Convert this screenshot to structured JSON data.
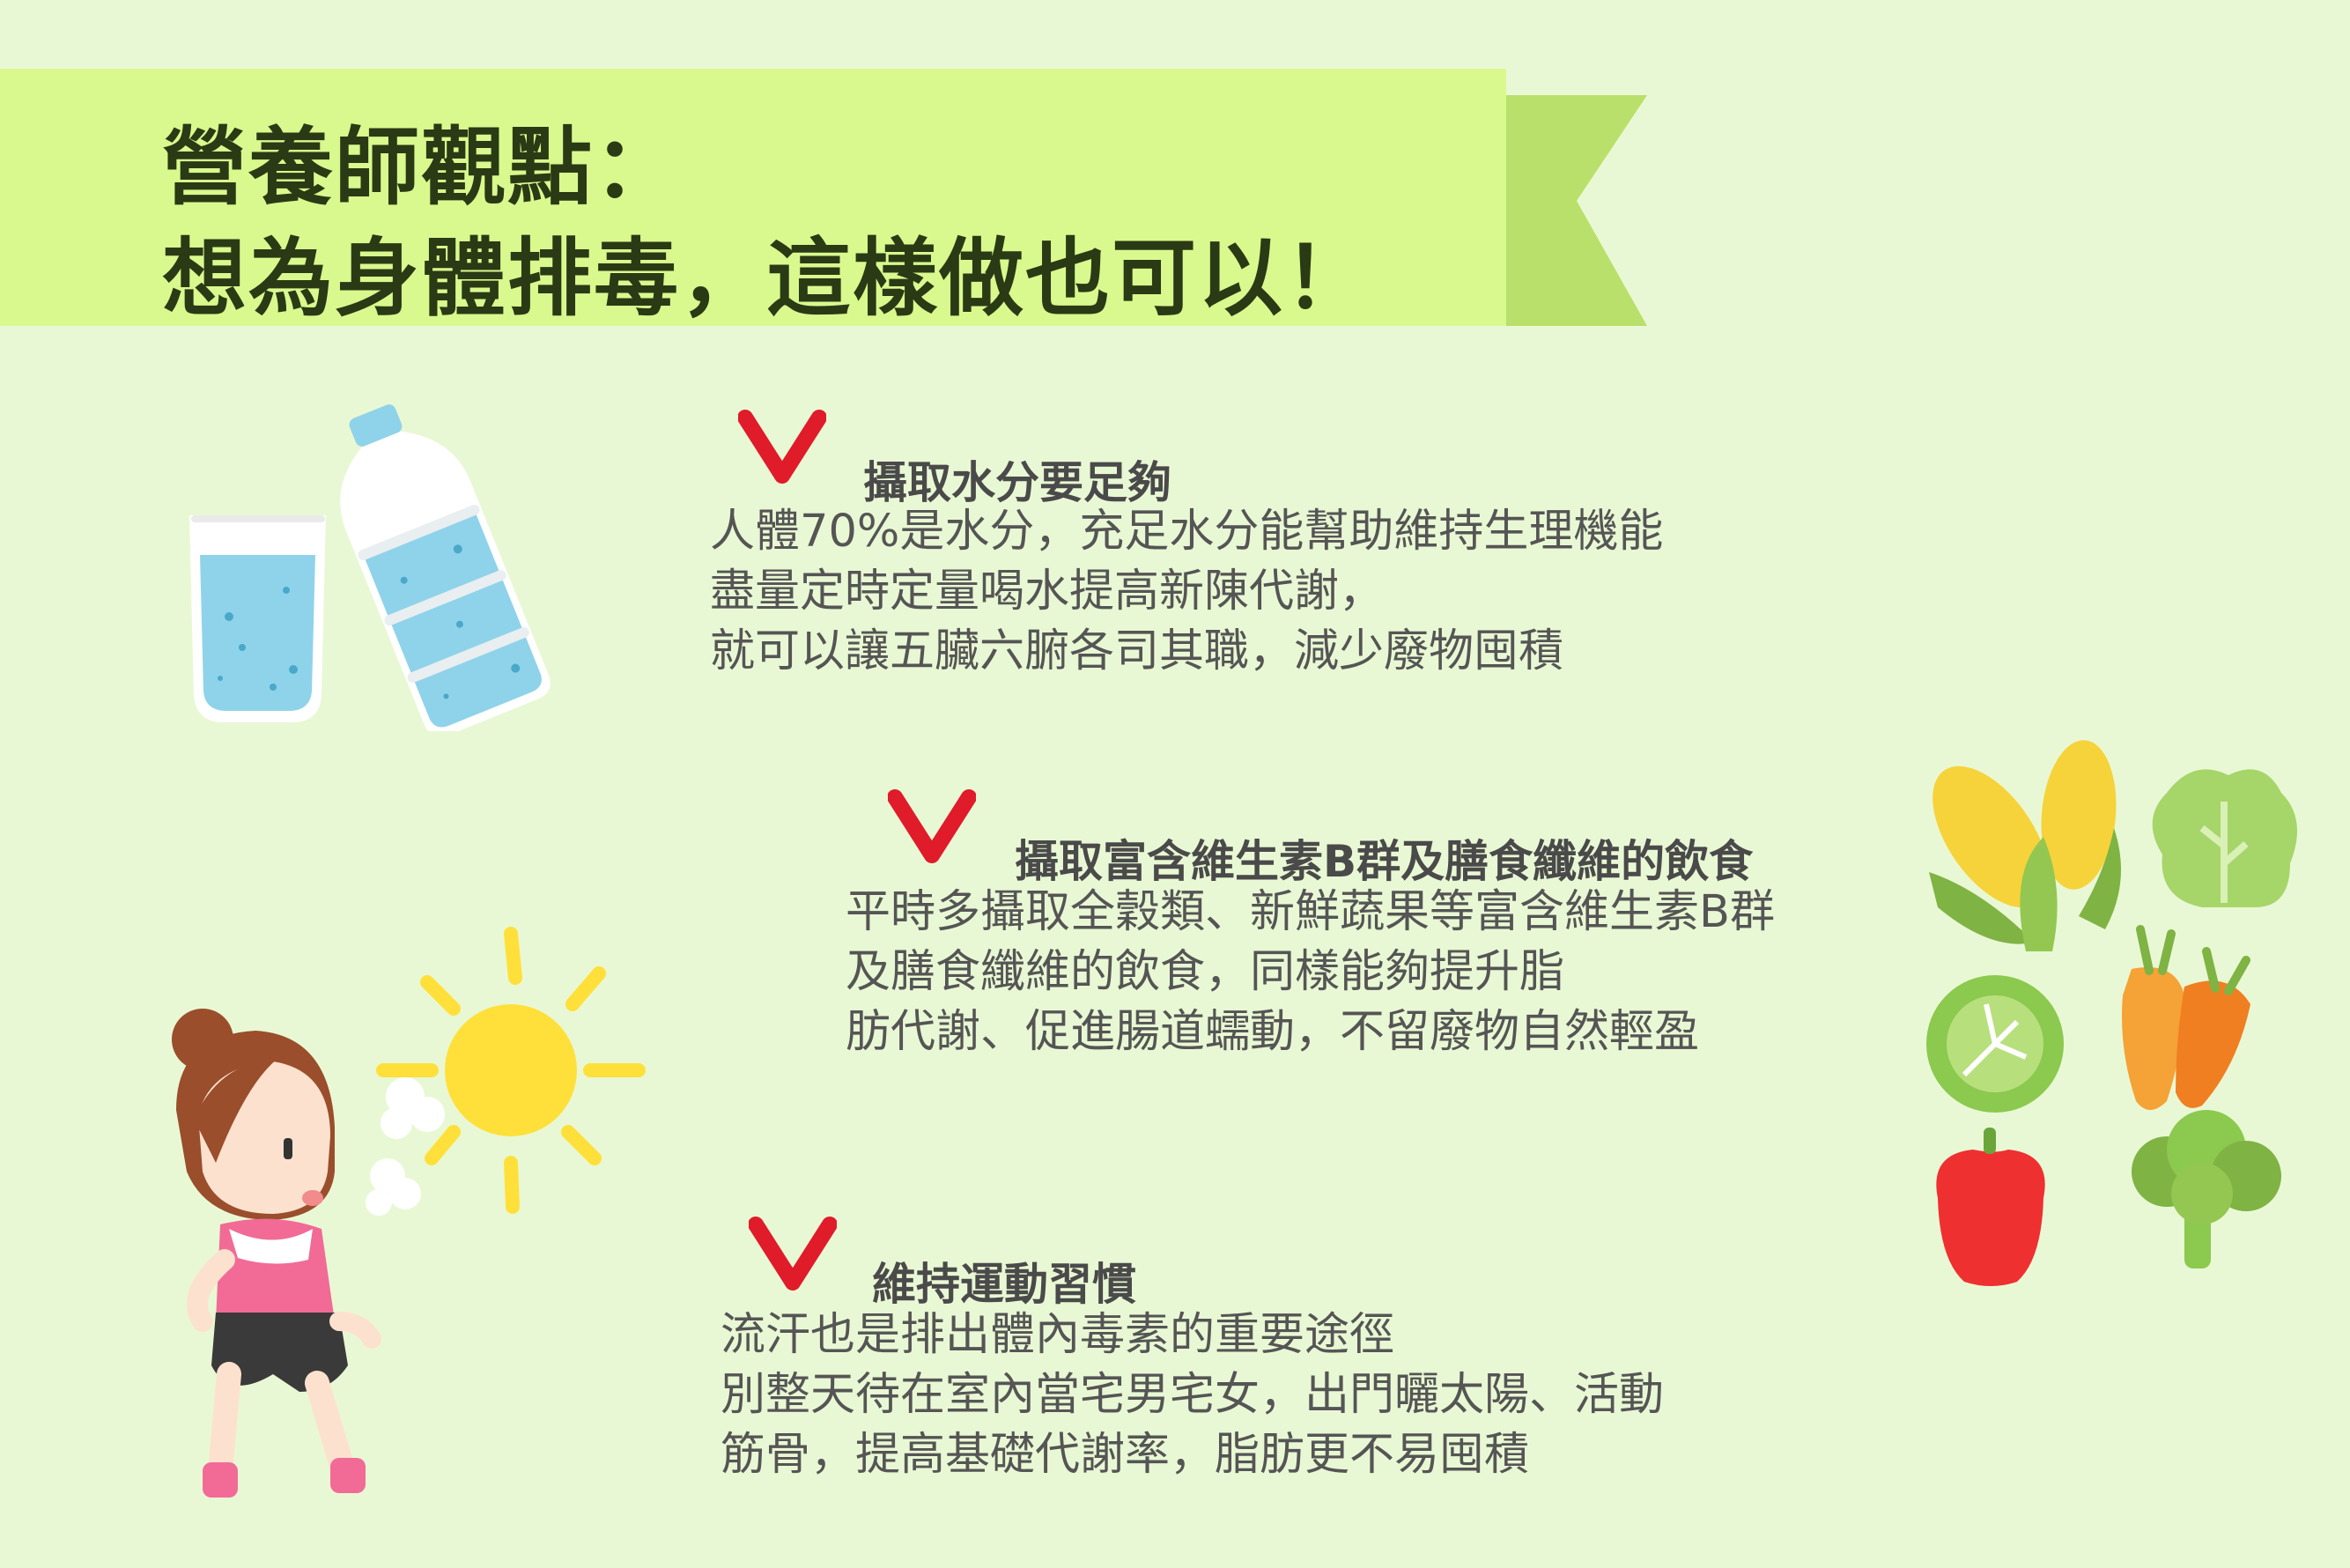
{
  "header": {
    "title_line1": "營養師觀點：",
    "title_line2": "想為身體排毒，這樣做也可以！",
    "colors": {
      "banner_main": "#d9f98e",
      "banner_tail": "#b9e06a",
      "title_text": "#2a3a14"
    }
  },
  "sections": [
    {
      "title": "攝取水分要足夠",
      "lines": [
        "人體70%是水分，充足水分能幫助維持生理機能",
        "盡量定時定量喝水提高新陳代謝，",
        "就可以讓五臟六腑各司其職，減少廢物囤積"
      ]
    },
    {
      "title": "攝取富含維生素B群及膳食纖維的飲食",
      "lines": [
        "平時多攝取全穀類、新鮮蔬果等富含維生素B群",
        "及膳食纖維的飲食，同樣能夠提升脂",
        "肪代謝、促進腸道蠕動，不留廢物自然輕盈"
      ]
    },
    {
      "title": "維持運動習慣",
      "lines": [
        "流汗也是排出體內毒素的重要途徑",
        "別整天待在室內當宅男宅女，出門曬太陽、活動",
        "筋骨，提高基礎代謝率，脂肪更不易囤積"
      ]
    }
  ],
  "check_color": "#e01b2a",
  "icons": [
    "water-glass-icon",
    "water-bottle-icon",
    "sun-icon",
    "jogging-woman-icon",
    "corn-icon",
    "lettuce-icon",
    "cabbage-icon",
    "carrot-icon",
    "bell-pepper-icon",
    "broccoli-icon"
  ]
}
